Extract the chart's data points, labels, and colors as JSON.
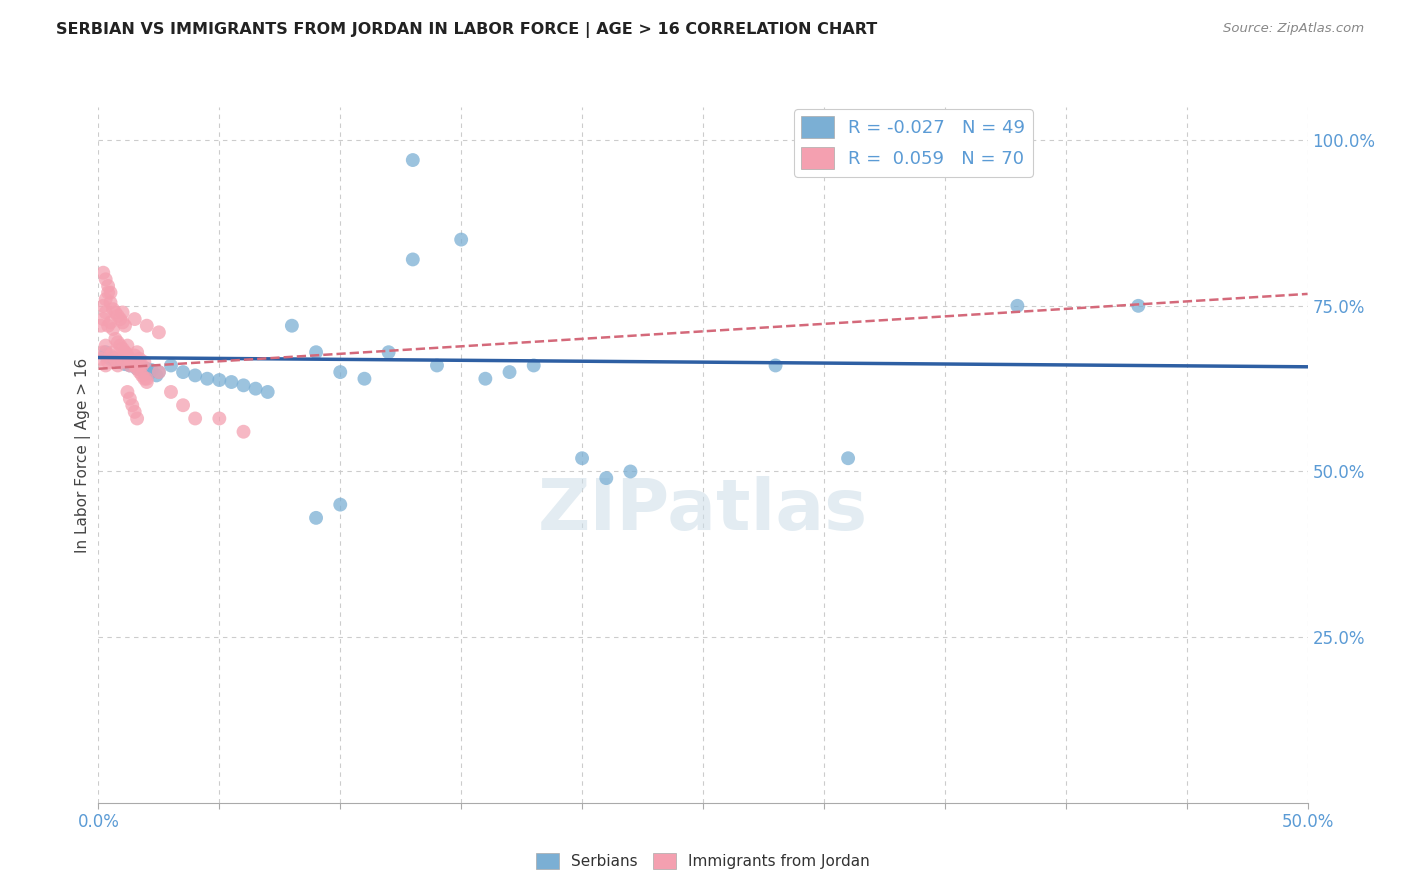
{
  "title": "SERBIAN VS IMMIGRANTS FROM JORDAN IN LABOR FORCE | AGE > 16 CORRELATION CHART",
  "source_text": "Source: ZipAtlas.com",
  "ylabel": "In Labor Force | Age > 16",
  "xlim": [
    0.0,
    0.5
  ],
  "ylim": [
    0.0,
    1.05
  ],
  "yticks": [
    0.25,
    0.5,
    0.75,
    1.0
  ],
  "ytick_labels": [
    "25.0%",
    "50.0%",
    "75.0%",
    "100.0%"
  ],
  "xticks": [
    0.0,
    0.05,
    0.1,
    0.15,
    0.2,
    0.25,
    0.3,
    0.35,
    0.4,
    0.45,
    0.5
  ],
  "xtick_labels_show": [
    0.0,
    0.5
  ],
  "grid_color": "#cccccc",
  "background_color": "#ffffff",
  "blue_color": "#7bafd4",
  "pink_color": "#f4a0b0",
  "axis_color": "#5b9bd5",
  "line_blue": "#2e5fa3",
  "line_pink": "#d4697a",
  "R_serbian": -0.027,
  "N_serbian": 49,
  "R_jordan": 0.059,
  "N_jordan": 70,
  "watermark": "ZIPatlas",
  "serbian_x": [
    0.003,
    0.005,
    0.008,
    0.01,
    0.012,
    0.015,
    0.018,
    0.02,
    0.022,
    0.025,
    0.003,
    0.006,
    0.009,
    0.011,
    0.013,
    0.016,
    0.019,
    0.021,
    0.024,
    0.03,
    0.035,
    0.04,
    0.045,
    0.05,
    0.055,
    0.06,
    0.065,
    0.07,
    0.08,
    0.09,
    0.1,
    0.11,
    0.12,
    0.13,
    0.14,
    0.15,
    0.16,
    0.17,
    0.18,
    0.2,
    0.21,
    0.22,
    0.28,
    0.31,
    0.38,
    0.43,
    0.13,
    0.1,
    0.09
  ],
  "serbian_y": [
    0.675,
    0.67,
    0.668,
    0.665,
    0.663,
    0.66,
    0.658,
    0.655,
    0.653,
    0.65,
    0.68,
    0.672,
    0.666,
    0.662,
    0.66,
    0.655,
    0.65,
    0.648,
    0.645,
    0.66,
    0.65,
    0.645,
    0.64,
    0.638,
    0.635,
    0.63,
    0.625,
    0.62,
    0.72,
    0.68,
    0.65,
    0.64,
    0.68,
    0.82,
    0.66,
    0.85,
    0.64,
    0.65,
    0.66,
    0.52,
    0.49,
    0.5,
    0.66,
    0.52,
    0.75,
    0.75,
    0.97,
    0.45,
    0.43
  ],
  "jordan_x": [
    0.001,
    0.002,
    0.003,
    0.003,
    0.004,
    0.005,
    0.006,
    0.007,
    0.008,
    0.009,
    0.01,
    0.011,
    0.012,
    0.013,
    0.014,
    0.015,
    0.016,
    0.017,
    0.018,
    0.019,
    0.001,
    0.002,
    0.003,
    0.004,
    0.005,
    0.006,
    0.007,
    0.008,
    0.009,
    0.01,
    0.011,
    0.012,
    0.013,
    0.014,
    0.015,
    0.016,
    0.017,
    0.018,
    0.019,
    0.02,
    0.002,
    0.003,
    0.004,
    0.005,
    0.006,
    0.007,
    0.008,
    0.009,
    0.01,
    0.011,
    0.012,
    0.013,
    0.014,
    0.015,
    0.016,
    0.02,
    0.025,
    0.03,
    0.035,
    0.04,
    0.05,
    0.06,
    0.002,
    0.003,
    0.004,
    0.005,
    0.01,
    0.015,
    0.02,
    0.025
  ],
  "jordan_y": [
    0.67,
    0.68,
    0.69,
    0.66,
    0.665,
    0.675,
    0.68,
    0.67,
    0.66,
    0.665,
    0.67,
    0.68,
    0.69,
    0.66,
    0.665,
    0.675,
    0.68,
    0.67,
    0.66,
    0.665,
    0.72,
    0.73,
    0.74,
    0.72,
    0.725,
    0.715,
    0.7,
    0.695,
    0.69,
    0.685,
    0.68,
    0.675,
    0.67,
    0.665,
    0.66,
    0.655,
    0.65,
    0.645,
    0.64,
    0.635,
    0.75,
    0.76,
    0.77,
    0.755,
    0.745,
    0.74,
    0.735,
    0.73,
    0.725,
    0.72,
    0.62,
    0.61,
    0.6,
    0.59,
    0.58,
    0.64,
    0.65,
    0.62,
    0.6,
    0.58,
    0.58,
    0.56,
    0.8,
    0.79,
    0.78,
    0.77,
    0.74,
    0.73,
    0.72,
    0.71
  ],
  "serbian_trendline_x": [
    0.0,
    0.5
  ],
  "serbian_trendline_y": [
    0.672,
    0.658
  ],
  "jordan_trendline_x": [
    0.0,
    0.5
  ],
  "jordan_trendline_y": [
    0.655,
    0.768
  ]
}
